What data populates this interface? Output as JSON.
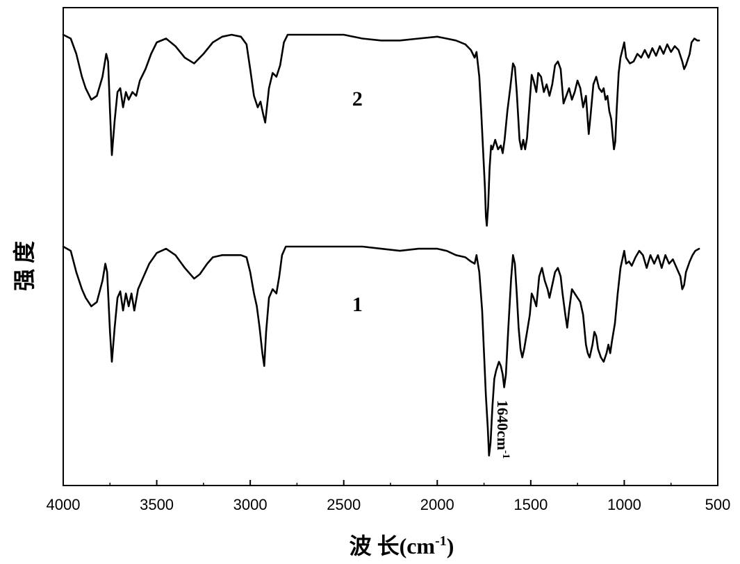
{
  "chart_data": {
    "type": "line",
    "title": "",
    "xlabel": "波 长(cm-1)",
    "xlabel_parts": {
      "main": "波 长(cm",
      "superscript": "-1",
      "close": ")"
    },
    "ylabel": "强 度",
    "xlim": [
      4000,
      500
    ],
    "x_reversed": true,
    "y_ticks_shown": false,
    "grid": false,
    "xticks": [
      4000,
      3500,
      3000,
      2500,
      2000,
      1500,
      1000,
      500
    ],
    "xtick_labels": [
      "4000",
      "3500",
      "3000",
      "2500",
      "2000",
      "1500",
      "1000",
      "500"
    ],
    "annotations": [
      {
        "text_main": "1640cm",
        "text_sup": "-1",
        "x": 1640,
        "series": "1",
        "rotation": "vertical"
      }
    ],
    "series": [
      {
        "name": "2",
        "label_at_x": 2455,
        "points": [
          [
            4000,
            1.0
          ],
          [
            3960,
            0.98
          ],
          [
            3930,
            0.9
          ],
          [
            3900,
            0.78
          ],
          [
            3880,
            0.72
          ],
          [
            3850,
            0.66
          ],
          [
            3820,
            0.68
          ],
          [
            3790,
            0.78
          ],
          [
            3770,
            0.9
          ],
          [
            3760,
            0.86
          ],
          [
            3750,
            0.6
          ],
          [
            3740,
            0.37
          ],
          [
            3725,
            0.55
          ],
          [
            3710,
            0.7
          ],
          [
            3695,
            0.72
          ],
          [
            3680,
            0.62
          ],
          [
            3665,
            0.7
          ],
          [
            3650,
            0.66
          ],
          [
            3630,
            0.7
          ],
          [
            3610,
            0.68
          ],
          [
            3590,
            0.76
          ],
          [
            3560,
            0.82
          ],
          [
            3530,
            0.9
          ],
          [
            3500,
            0.96
          ],
          [
            3450,
            0.98
          ],
          [
            3400,
            0.94
          ],
          [
            3350,
            0.88
          ],
          [
            3300,
            0.85
          ],
          [
            3250,
            0.9
          ],
          [
            3200,
            0.96
          ],
          [
            3150,
            0.99
          ],
          [
            3100,
            1.0
          ],
          [
            3050,
            0.99
          ],
          [
            3020,
            0.95
          ],
          [
            3000,
            0.82
          ],
          [
            2980,
            0.68
          ],
          [
            2960,
            0.62
          ],
          [
            2945,
            0.65
          ],
          [
            2930,
            0.58
          ],
          [
            2920,
            0.54
          ],
          [
            2900,
            0.72
          ],
          [
            2880,
            0.8
          ],
          [
            2860,
            0.78
          ],
          [
            2840,
            0.84
          ],
          [
            2820,
            0.96
          ],
          [
            2800,
            1.0
          ],
          [
            2700,
            1.0
          ],
          [
            2600,
            1.0
          ],
          [
            2500,
            1.0
          ],
          [
            2400,
            0.98
          ],
          [
            2300,
            0.97
          ],
          [
            2200,
            0.97
          ],
          [
            2100,
            0.98
          ],
          [
            2000,
            0.99
          ],
          [
            1950,
            0.98
          ],
          [
            1900,
            0.97
          ],
          [
            1850,
            0.95
          ],
          [
            1820,
            0.92
          ],
          [
            1800,
            0.88
          ],
          [
            1790,
            0.91
          ],
          [
            1775,
            0.78
          ],
          [
            1765,
            0.6
          ],
          [
            1755,
            0.4
          ],
          [
            1745,
            0.2
          ],
          [
            1740,
            0.05
          ],
          [
            1735,
            0.0
          ],
          [
            1728,
            0.1
          ],
          [
            1720,
            0.3
          ],
          [
            1712,
            0.42
          ],
          [
            1705,
            0.4
          ],
          [
            1690,
            0.45
          ],
          [
            1675,
            0.4
          ],
          [
            1660,
            0.42
          ],
          [
            1650,
            0.38
          ],
          [
            1640,
            0.45
          ],
          [
            1625,
            0.6
          ],
          [
            1610,
            0.72
          ],
          [
            1595,
            0.85
          ],
          [
            1585,
            0.83
          ],
          [
            1575,
            0.7
          ],
          [
            1560,
            0.45
          ],
          [
            1550,
            0.4
          ],
          [
            1540,
            0.45
          ],
          [
            1530,
            0.4
          ],
          [
            1520,
            0.46
          ],
          [
            1505,
            0.66
          ],
          [
            1495,
            0.79
          ],
          [
            1485,
            0.76
          ],
          [
            1470,
            0.7
          ],
          [
            1460,
            0.8
          ],
          [
            1445,
            0.78
          ],
          [
            1430,
            0.7
          ],
          [
            1415,
            0.74
          ],
          [
            1400,
            0.68
          ],
          [
            1385,
            0.74
          ],
          [
            1370,
            0.84
          ],
          [
            1355,
            0.86
          ],
          [
            1340,
            0.82
          ],
          [
            1325,
            0.64
          ],
          [
            1310,
            0.68
          ],
          [
            1295,
            0.72
          ],
          [
            1280,
            0.66
          ],
          [
            1265,
            0.7
          ],
          [
            1250,
            0.76
          ],
          [
            1235,
            0.72
          ],
          [
            1220,
            0.62
          ],
          [
            1205,
            0.68
          ],
          [
            1190,
            0.48
          ],
          [
            1180,
            0.58
          ],
          [
            1165,
            0.74
          ],
          [
            1150,
            0.78
          ],
          [
            1135,
            0.72
          ],
          [
            1120,
            0.7
          ],
          [
            1110,
            0.72
          ],
          [
            1100,
            0.66
          ],
          [
            1090,
            0.68
          ],
          [
            1080,
            0.6
          ],
          [
            1070,
            0.56
          ],
          [
            1060,
            0.45
          ],
          [
            1055,
            0.4
          ],
          [
            1048,
            0.44
          ],
          [
            1040,
            0.62
          ],
          [
            1030,
            0.8
          ],
          [
            1020,
            0.88
          ],
          [
            1010,
            0.92
          ],
          [
            1000,
            0.96
          ],
          [
            990,
            0.88
          ],
          [
            970,
            0.85
          ],
          [
            950,
            0.86
          ],
          [
            930,
            0.9
          ],
          [
            910,
            0.88
          ],
          [
            890,
            0.92
          ],
          [
            870,
            0.88
          ],
          [
            850,
            0.93
          ],
          [
            830,
            0.89
          ],
          [
            810,
            0.94
          ],
          [
            790,
            0.9
          ],
          [
            770,
            0.95
          ],
          [
            750,
            0.91
          ],
          [
            730,
            0.94
          ],
          [
            710,
            0.92
          ],
          [
            690,
            0.86
          ],
          [
            680,
            0.82
          ],
          [
            670,
            0.84
          ],
          [
            650,
            0.9
          ],
          [
            640,
            0.96
          ],
          [
            625,
            0.98
          ],
          [
            610,
            0.97
          ],
          [
            600,
            0.97
          ]
        ]
      },
      {
        "name": "1",
        "label_at_x": 2455,
        "points": [
          [
            4000,
            1.0
          ],
          [
            3960,
            0.98
          ],
          [
            3930,
            0.88
          ],
          [
            3900,
            0.8
          ],
          [
            3880,
            0.76
          ],
          [
            3850,
            0.72
          ],
          [
            3820,
            0.74
          ],
          [
            3790,
            0.84
          ],
          [
            3775,
            0.92
          ],
          [
            3765,
            0.88
          ],
          [
            3750,
            0.6
          ],
          [
            3740,
            0.46
          ],
          [
            3725,
            0.62
          ],
          [
            3710,
            0.76
          ],
          [
            3695,
            0.79
          ],
          [
            3680,
            0.7
          ],
          [
            3665,
            0.78
          ],
          [
            3650,
            0.72
          ],
          [
            3635,
            0.78
          ],
          [
            3620,
            0.7
          ],
          [
            3600,
            0.8
          ],
          [
            3570,
            0.86
          ],
          [
            3540,
            0.92
          ],
          [
            3500,
            0.97
          ],
          [
            3450,
            0.99
          ],
          [
            3400,
            0.96
          ],
          [
            3350,
            0.9
          ],
          [
            3300,
            0.85
          ],
          [
            3270,
            0.87
          ],
          [
            3230,
            0.92
          ],
          [
            3200,
            0.95
          ],
          [
            3150,
            0.96
          ],
          [
            3100,
            0.96
          ],
          [
            3050,
            0.96
          ],
          [
            3020,
            0.95
          ],
          [
            3000,
            0.88
          ],
          [
            2980,
            0.78
          ],
          [
            2965,
            0.72
          ],
          [
            2950,
            0.62
          ],
          [
            2935,
            0.5
          ],
          [
            2925,
            0.44
          ],
          [
            2915,
            0.6
          ],
          [
            2900,
            0.76
          ],
          [
            2880,
            0.8
          ],
          [
            2860,
            0.78
          ],
          [
            2845,
            0.86
          ],
          [
            2830,
            0.96
          ],
          [
            2810,
            1.0
          ],
          [
            2700,
            1.0
          ],
          [
            2600,
            1.0
          ],
          [
            2500,
            1.0
          ],
          [
            2400,
            1.0
          ],
          [
            2300,
            0.99
          ],
          [
            2200,
            0.98
          ],
          [
            2100,
            0.99
          ],
          [
            2000,
            0.99
          ],
          [
            1950,
            0.98
          ],
          [
            1900,
            0.96
          ],
          [
            1850,
            0.95
          ],
          [
            1820,
            0.93
          ],
          [
            1800,
            0.92
          ],
          [
            1790,
            0.96
          ],
          [
            1775,
            0.88
          ],
          [
            1760,
            0.7
          ],
          [
            1750,
            0.5
          ],
          [
            1740,
            0.3
          ],
          [
            1730,
            0.15
          ],
          [
            1723,
            0.02
          ],
          [
            1715,
            0.08
          ],
          [
            1705,
            0.25
          ],
          [
            1695,
            0.38
          ],
          [
            1685,
            0.42
          ],
          [
            1670,
            0.46
          ],
          [
            1660,
            0.44
          ],
          [
            1650,
            0.4
          ],
          [
            1642,
            0.34
          ],
          [
            1633,
            0.4
          ],
          [
            1620,
            0.62
          ],
          [
            1605,
            0.85
          ],
          [
            1595,
            0.96
          ],
          [
            1585,
            0.92
          ],
          [
            1575,
            0.78
          ],
          [
            1565,
            0.62
          ],
          [
            1555,
            0.52
          ],
          [
            1545,
            0.48
          ],
          [
            1535,
            0.52
          ],
          [
            1520,
            0.6
          ],
          [
            1505,
            0.68
          ],
          [
            1495,
            0.78
          ],
          [
            1485,
            0.76
          ],
          [
            1470,
            0.72
          ],
          [
            1455,
            0.86
          ],
          [
            1440,
            0.9
          ],
          [
            1425,
            0.84
          ],
          [
            1410,
            0.8
          ],
          [
            1400,
            0.76
          ],
          [
            1385,
            0.82
          ],
          [
            1370,
            0.88
          ],
          [
            1355,
            0.9
          ],
          [
            1340,
            0.86
          ],
          [
            1330,
            0.78
          ],
          [
            1315,
            0.68
          ],
          [
            1305,
            0.62
          ],
          [
            1295,
            0.7
          ],
          [
            1280,
            0.8
          ],
          [
            1265,
            0.78
          ],
          [
            1250,
            0.76
          ],
          [
            1235,
            0.74
          ],
          [
            1220,
            0.68
          ],
          [
            1205,
            0.54
          ],
          [
            1195,
            0.5
          ],
          [
            1185,
            0.48
          ],
          [
            1170,
            0.54
          ],
          [
            1160,
            0.6
          ],
          [
            1150,
            0.58
          ],
          [
            1140,
            0.52
          ],
          [
            1125,
            0.48
          ],
          [
            1110,
            0.46
          ],
          [
            1095,
            0.5
          ],
          [
            1085,
            0.54
          ],
          [
            1075,
            0.5
          ],
          [
            1065,
            0.56
          ],
          [
            1050,
            0.64
          ],
          [
            1035,
            0.78
          ],
          [
            1020,
            0.9
          ],
          [
            1010,
            0.94
          ],
          [
            1000,
            0.98
          ],
          [
            990,
            0.92
          ],
          [
            975,
            0.93
          ],
          [
            960,
            0.91
          ],
          [
            940,
            0.95
          ],
          [
            920,
            0.98
          ],
          [
            900,
            0.96
          ],
          [
            880,
            0.9
          ],
          [
            860,
            0.96
          ],
          [
            840,
            0.92
          ],
          [
            820,
            0.96
          ],
          [
            800,
            0.9
          ],
          [
            780,
            0.96
          ],
          [
            760,
            0.92
          ],
          [
            740,
            0.94
          ],
          [
            720,
            0.9
          ],
          [
            700,
            0.86
          ],
          [
            690,
            0.8
          ],
          [
            680,
            0.82
          ],
          [
            670,
            0.88
          ],
          [
            650,
            0.93
          ],
          [
            635,
            0.96
          ],
          [
            620,
            0.98
          ],
          [
            600,
            0.99
          ]
        ]
      }
    ]
  }
}
